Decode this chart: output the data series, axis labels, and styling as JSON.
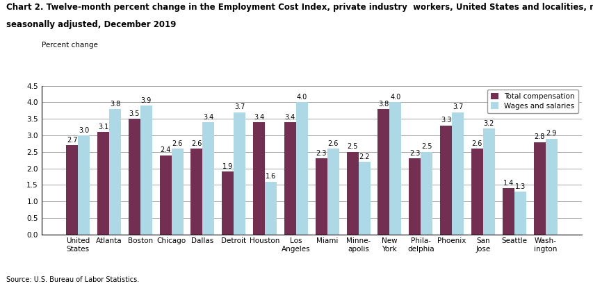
{
  "title_line1": "Chart 2. Twelve-month percent change in the Employment Cost Index, private industry  workers, United States and localities, not",
  "title_line2": "seasonally adjusted, December 2019",
  "ylabel_label": "Percent change",
  "ylim": [
    0,
    4.5
  ],
  "yticks": [
    0.0,
    0.5,
    1.0,
    1.5,
    2.0,
    2.5,
    3.0,
    3.5,
    4.0,
    4.5
  ],
  "source": "Source: U.S. Bureau of Labor Statistics.",
  "categories": [
    "United\nStates",
    "Atlanta",
    "Boston",
    "Chicago",
    "Dallas",
    "Detroit",
    "Houston",
    "Los\nAngeles",
    "Miami",
    "Minne-\napolis",
    "New\nYork",
    "Phila-\ndelphia",
    "Phoenix",
    "San\nJose",
    "Seattle",
    "Wash-\nington"
  ],
  "total_compensation": [
    2.7,
    3.1,
    3.5,
    2.4,
    2.6,
    1.9,
    3.4,
    3.4,
    2.3,
    2.5,
    3.8,
    2.3,
    3.3,
    2.6,
    1.4,
    2.8
  ],
  "wages_salaries": [
    3.0,
    3.8,
    3.9,
    2.6,
    3.4,
    3.7,
    1.6,
    4.0,
    2.6,
    2.2,
    4.0,
    2.5,
    3.7,
    3.2,
    1.3,
    2.9
  ],
  "color_total": "#722F52",
  "color_wages": "#ADD8E6",
  "legend_labels": [
    "Total compensation",
    "Wages and salaries"
  ],
  "bar_width": 0.38,
  "label_fontsize": 7.0,
  "tick_fontsize": 7.5,
  "title_fontsize": 8.5
}
